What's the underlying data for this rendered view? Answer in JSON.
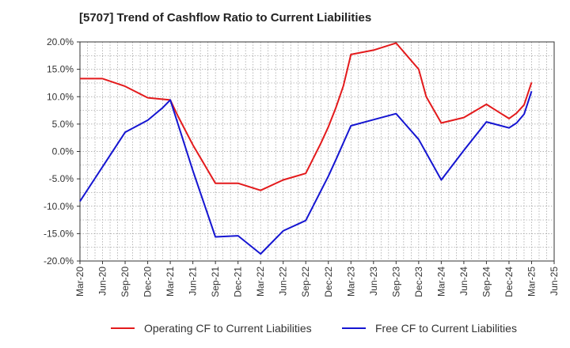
{
  "chart_data": {
    "type": "line",
    "title": "[5707]  Trend of Cashflow Ratio to Current Liabilities",
    "xlabel": "",
    "ylabel": "",
    "ylim": [
      -20,
      20
    ],
    "y_ticks": [
      "20.0%",
      "15.0%",
      "10.0%",
      "5.0%",
      "0.0%",
      "-5.0%",
      "-10.0%",
      "-15.0%",
      "-20.0%"
    ],
    "y_tick_values": [
      20,
      15,
      10,
      5,
      0,
      -5,
      -10,
      -15,
      -20
    ],
    "x_ticks": [
      "Mar-20",
      "Jun-20",
      "Sep-20",
      "Dec-20",
      "Mar-21",
      "Jun-21",
      "Sep-21",
      "Dec-21",
      "Mar-22",
      "Jun-22",
      "Sep-22",
      "Dec-22",
      "Mar-23",
      "Jun-23",
      "Sep-23",
      "Dec-23",
      "Mar-24",
      "Jun-24",
      "Sep-24",
      "Dec-24",
      "Mar-25",
      "Jun-25"
    ],
    "grid": true,
    "legend_position": "bottom",
    "series": [
      {
        "name": "Operating CF to Current Liabilities",
        "color": "#e31a1c",
        "x": [
          "Mar-20",
          "Jun-20",
          "Sep-20",
          "Dec-20",
          "Mar-21",
          "Apr-21",
          "Jun-21",
          "Sep-21",
          "Dec-21",
          "Mar-22",
          "Jun-22",
          "Sep-22",
          "Nov-22",
          "Dec-22",
          "Jan-23",
          "Feb-23",
          "Mar-23",
          "Jun-23",
          "Sep-23",
          "Dec-23",
          "Jan-24",
          "Mar-24",
          "Jun-24",
          "Sep-24",
          "Dec-24",
          "Jan-25",
          "Feb-25",
          "Mar-25"
        ],
        "values": [
          13.3,
          13.3,
          11.9,
          9.8,
          9.4,
          6.5,
          1.2,
          -5.8,
          -5.8,
          -7.1,
          -5.2,
          -4.0,
          1.5,
          4.5,
          8.0,
          12.0,
          17.7,
          18.5,
          19.8,
          15.0,
          10.0,
          5.2,
          6.2,
          8.6,
          6.0,
          7.0,
          8.5,
          12.6
        ]
      },
      {
        "name": "Free CF to Current Liabilities",
        "color": "#1515d1",
        "x": [
          "Mar-20",
          "Jun-20",
          "Sep-20",
          "Dec-20",
          "Feb-21",
          "Mar-21",
          "Jun-21",
          "Sep-21",
          "Dec-21",
          "Mar-22",
          "Jun-22",
          "Sep-22",
          "Dec-22",
          "Jan-23",
          "Mar-23",
          "Jun-23",
          "Sep-23",
          "Dec-23",
          "Mar-24",
          "Jun-24",
          "Sep-24",
          "Dec-24",
          "Jan-25",
          "Feb-25",
          "Mar-25"
        ],
        "values": [
          -9.1,
          -2.8,
          3.5,
          5.7,
          8.0,
          9.4,
          -3.5,
          -15.6,
          -15.4,
          -18.7,
          -14.5,
          -12.6,
          -4.5,
          -1.5,
          4.7,
          5.8,
          6.9,
          2.2,
          -5.2,
          0.2,
          5.4,
          4.3,
          5.2,
          6.8,
          11.0
        ]
      }
    ]
  }
}
